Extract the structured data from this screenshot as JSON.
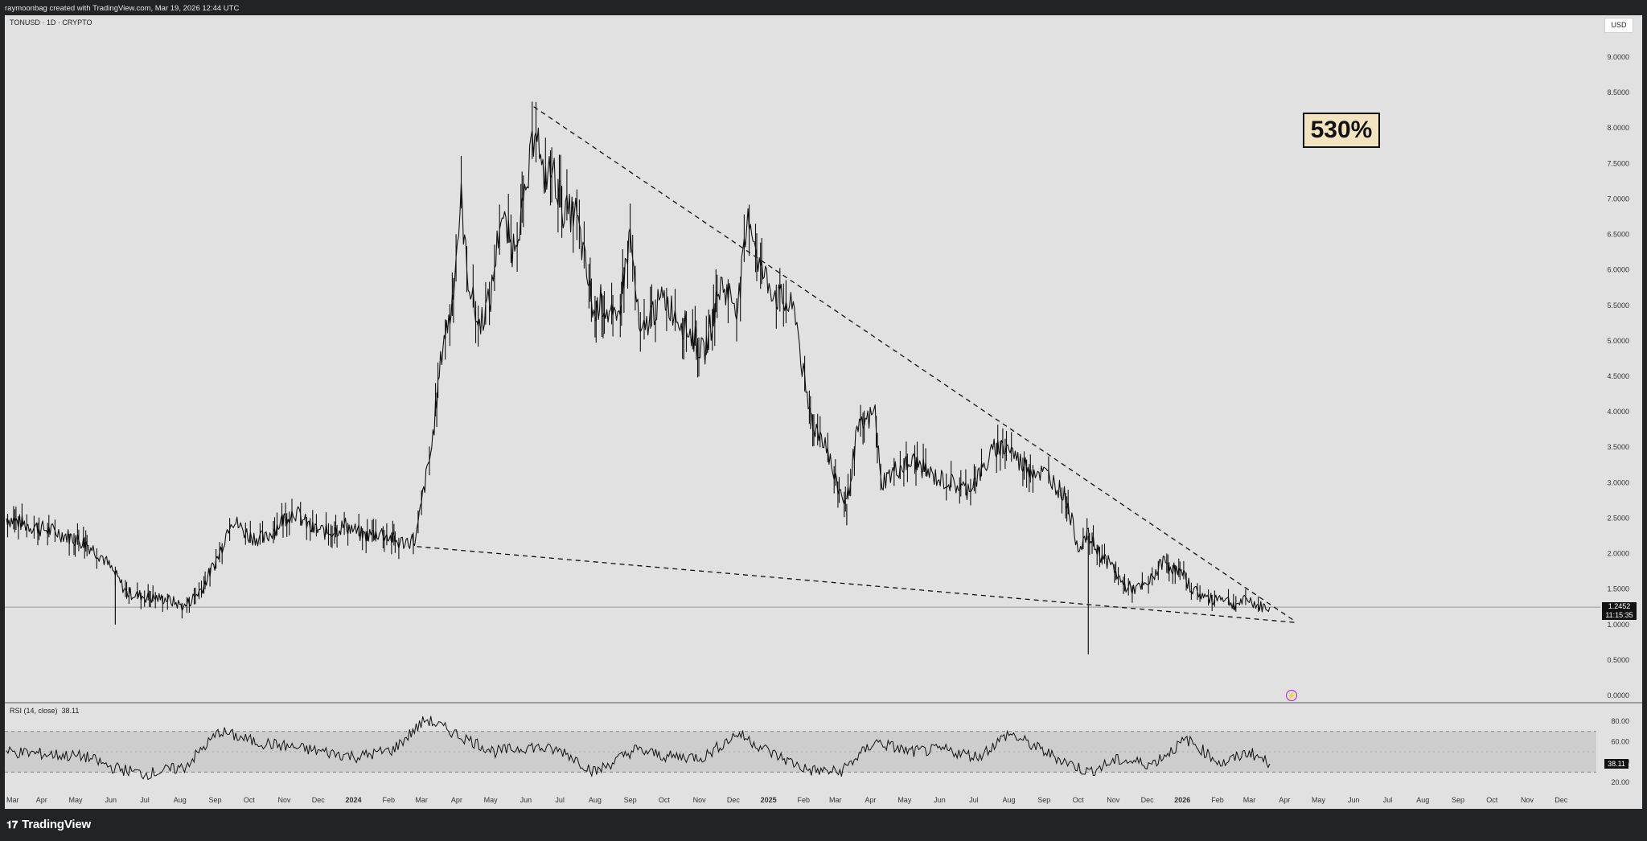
{
  "header": {
    "attribution": "raymoonbag created with TradingView.com, Mar 19, 2026 12:44 UTC",
    "symbol": "TONUSD · 1D · CRYPTO",
    "currency_button": "USD"
  },
  "annotations": {
    "badge_text": "530%",
    "current_price": "1.2452",
    "countdown": "11:15:35",
    "rsi_title": "RSI (14, close)",
    "rsi_value": "38.11"
  },
  "footer": {
    "logo_text": "TradingView"
  },
  "chart_data": [
    {
      "type": "line",
      "style": "daily OHLC bars (approximated as a line)",
      "title": "TONUSD · 1D · CRYPTO",
      "y_axis_ticks": [
        "0.0000",
        "0.5000",
        "1.0000",
        "1.5000",
        "2.0000",
        "2.5000",
        "3.0000",
        "3.5000",
        "4.0000",
        "4.5000",
        "5.0000",
        "5.5000",
        "6.0000",
        "6.5000",
        "7.0000",
        "7.5000",
        "8.0000",
        "8.5000",
        "9.0000"
      ],
      "x_axis_ticks": [
        "Mar",
        "Apr",
        "May",
        "Jun",
        "Jul",
        "Aug",
        "Sep",
        "Oct",
        "Nov",
        "Dec",
        "2024",
        "Feb",
        "Mar",
        "Apr",
        "May",
        "Jun",
        "Jul",
        "Aug",
        "Sep",
        "Oct",
        "Nov",
        "Dec",
        "2025",
        "Feb",
        "Mar",
        "Apr",
        "May",
        "Jun",
        "Jul",
        "Aug",
        "Sep",
        "Oct",
        "Nov",
        "Dec",
        "2026",
        "Feb",
        "Mar",
        "Apr",
        "May",
        "Jun",
        "Jul",
        "Aug",
        "Sep",
        "Oct",
        "Nov",
        "Dec"
      ],
      "ylim": [
        0,
        9.0
      ],
      "x": [
        "2023-03-01",
        "2023-03-20",
        "2023-04-15",
        "2023-05-10",
        "2023-05-25",
        "2023-06-05",
        "2023-06-15",
        "2023-07-05",
        "2023-07-20",
        "2023-08-05",
        "2023-08-20",
        "2023-09-05",
        "2023-09-15",
        "2023-10-01",
        "2023-10-15",
        "2023-11-01",
        "2023-11-10",
        "2023-11-25",
        "2023-12-10",
        "2023-12-25",
        "2024-01-10",
        "2024-01-25",
        "2024-02-10",
        "2024-02-25",
        "2024-03-02",
        "2024-03-10",
        "2024-03-20",
        "2024-03-27",
        "2024-04-05",
        "2024-04-10",
        "2024-04-20",
        "2024-05-01",
        "2024-05-10",
        "2024-05-20",
        "2024-06-01",
        "2024-06-10",
        "2024-06-15",
        "2024-06-25",
        "2024-07-05",
        "2024-07-15",
        "2024-08-01",
        "2024-08-05",
        "2024-08-20",
        "2024-09-01",
        "2024-09-10",
        "2024-09-20",
        "2024-10-01",
        "2024-10-15",
        "2024-10-25",
        "2024-11-05",
        "2024-11-20",
        "2024-12-05",
        "2024-12-15",
        "2024-12-25",
        "2025-01-10",
        "2025-01-25",
        "2025-02-03",
        "2025-02-10",
        "2025-02-20",
        "2025-03-01",
        "2025-03-11",
        "2025-03-20",
        "2025-04-05",
        "2025-04-10",
        "2025-04-25",
        "2025-05-10",
        "2025-05-25",
        "2025-06-10",
        "2025-06-25",
        "2025-07-10",
        "2025-07-20",
        "2025-08-01",
        "2025-08-10",
        "2025-08-20",
        "2025-09-05",
        "2025-09-20",
        "2025-10-01",
        "2025-10-10",
        "2025-10-20",
        "2025-11-01",
        "2025-11-10",
        "2025-11-20",
        "2025-12-01",
        "2025-12-15",
        "2026-01-01",
        "2026-01-10",
        "2026-01-25",
        "2026-02-05",
        "2026-02-15",
        "2026-03-01",
        "2026-03-10",
        "2026-03-19"
      ],
      "y": [
        2.5,
        2.4,
        2.3,
        2.15,
        1.95,
        1.7,
        1.45,
        1.38,
        1.36,
        1.25,
        1.5,
        2.0,
        2.5,
        2.25,
        2.2,
        2.5,
        2.6,
        2.35,
        2.3,
        2.4,
        2.25,
        2.3,
        2.15,
        2.2,
        2.8,
        3.5,
        5.0,
        5.4,
        7.0,
        6.0,
        5.2,
        5.6,
        6.8,
        6.3,
        7.0,
        8.2,
        7.3,
        7.4,
        6.8,
        6.8,
        5.3,
        5.6,
        5.2,
        6.5,
        5.0,
        5.4,
        5.6,
        5.3,
        5.1,
        4.8,
        5.8,
        5.5,
        6.8,
        6.0,
        5.6,
        5.4,
        4.2,
        3.8,
        3.6,
        3.0,
        2.7,
        3.7,
        4.0,
        3.0,
        3.2,
        3.3,
        3.1,
        3.0,
        2.9,
        3.2,
        3.5,
        3.5,
        3.3,
        3.2,
        3.1,
        2.8,
        2.1,
        2.25,
        2.0,
        1.8,
        1.55,
        1.5,
        1.55,
        1.9,
        1.7,
        1.5,
        1.35,
        1.4,
        1.28,
        1.35,
        1.25,
        1.2452
      ],
      "min_wicks": [
        {
          "x": "2023-06-05",
          "y": 1.0
        },
        {
          "x": "2025-10-10",
          "y": 0.58
        },
        {
          "x": "2025-03-11",
          "y": 2.4
        }
      ],
      "trendlines": [
        {
          "style": "dashed",
          "from": {
            "x": "2024-06-08",
            "y": 8.3
          },
          "to": {
            "x": "2026-04-10",
            "y": 1.05
          }
        },
        {
          "style": "dashed",
          "from": {
            "x": "2024-02-26",
            "y": 2.1
          },
          "to": {
            "x": "2026-04-10",
            "y": 1.03
          }
        }
      ],
      "horizontal_line": 1.2452
    },
    {
      "type": "line",
      "title": "RSI (14, close)",
      "y_axis_ticks": [
        "20.00",
        "40.00",
        "60.00",
        "80.00"
      ],
      "ylim": [
        15,
        95
      ],
      "band": [
        30,
        70
      ],
      "midline": 50,
      "x": [
        "2023-03-01",
        "2023-04-01",
        "2023-05-10",
        "2023-06-01",
        "2023-07-01",
        "2023-08-05",
        "2023-09-05",
        "2023-10-05",
        "2023-11-05",
        "2023-12-05",
        "2024-01-05",
        "2024-02-05",
        "2024-03-05",
        "2024-04-05",
        "2024-05-05",
        "2024-06-05",
        "2024-07-05",
        "2024-08-01",
        "2024-09-05",
        "2024-10-05",
        "2024-11-05",
        "2024-12-05",
        "2025-01-05",
        "2025-02-05",
        "2025-03-05",
        "2025-04-05",
        "2025-05-05",
        "2025-06-05",
        "2025-07-05",
        "2025-08-01",
        "2025-09-05",
        "2025-10-10",
        "2025-11-05",
        "2025-12-05",
        "2026-01-05",
        "2026-02-05",
        "2026-03-01",
        "2026-03-19"
      ],
      "y": [
        50,
        48,
        45,
        35,
        28,
        35,
        70,
        60,
        55,
        50,
        45,
        52,
        82,
        65,
        50,
        55,
        50,
        30,
        52,
        45,
        45,
        68,
        48,
        32,
        30,
        60,
        50,
        52,
        45,
        68,
        48,
        30,
        42,
        38,
        62,
        38,
        50,
        38.11
      ]
    }
  ]
}
